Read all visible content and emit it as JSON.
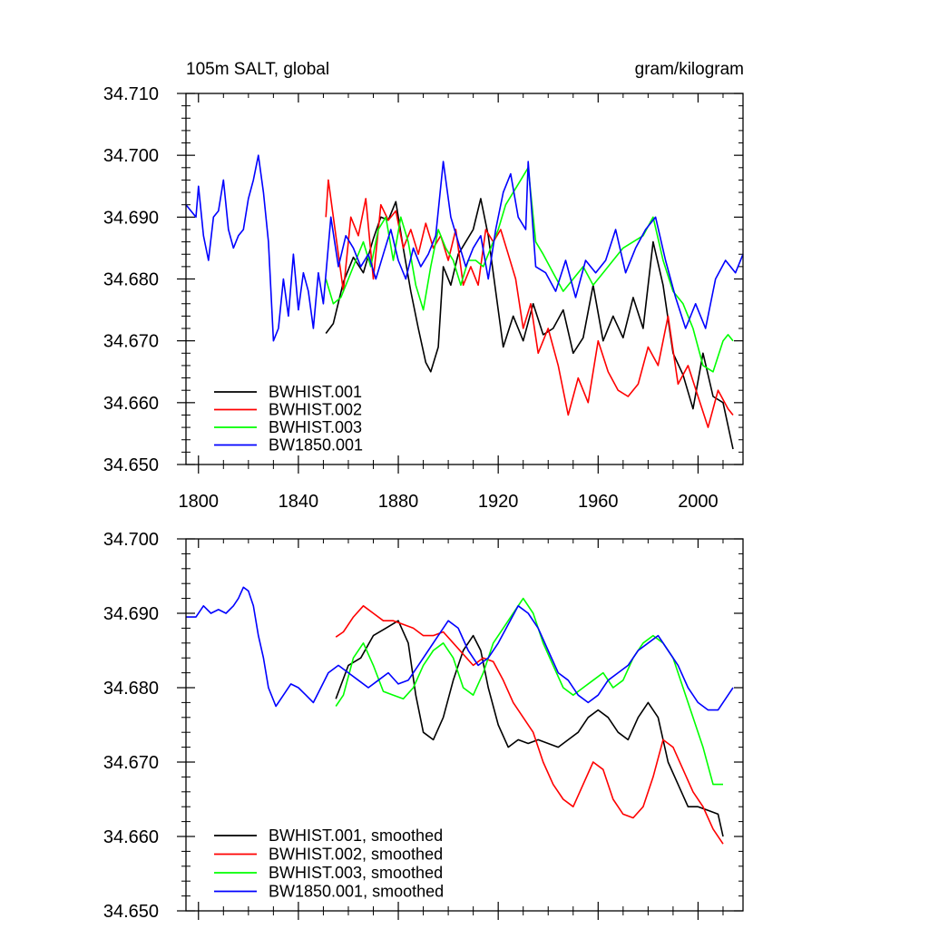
{
  "chart_data": [
    {
      "type": "line",
      "title": "105m SALT, global",
      "units": "gram/kilogram",
      "xlim": [
        1795,
        2018
      ],
      "ylim": [
        34.65,
        34.71
      ],
      "xticks": [
        1800,
        1840,
        1880,
        1920,
        1960,
        2000
      ],
      "yticks": [
        34.65,
        34.66,
        34.67,
        34.68,
        34.69,
        34.7,
        34.71
      ],
      "xtick_labels": [
        "1800",
        "1840",
        "1880",
        "1920",
        "1960",
        "2000"
      ],
      "ytick_labels": [
        "34.650",
        "34.660",
        "34.670",
        "34.680",
        "34.690",
        "34.700",
        "34.710"
      ],
      "legend_position": "bottom-left",
      "series": [
        {
          "name": "BWHIST.001",
          "color": "#000000",
          "x": [
            1851,
            1854,
            1858,
            1862,
            1866,
            1870,
            1873,
            1876,
            1879,
            1882,
            1885,
            1888,
            1891,
            1893,
            1896,
            1898,
            1901,
            1904,
            1907,
            1910,
            1913,
            1916,
            1919,
            1922,
            1926,
            1930,
            1934,
            1938,
            1942,
            1946,
            1950,
            1954,
            1958,
            1962,
            1966,
            1970,
            1974,
            1978,
            1982,
            1986,
            1990,
            1994,
            1998,
            2002,
            2006,
            2010,
            2014
          ],
          "y": [
            34.6712,
            34.6728,
            34.6795,
            34.6835,
            34.681,
            34.6865,
            34.69,
            34.6895,
            34.6925,
            34.685,
            34.678,
            34.672,
            34.6665,
            34.665,
            34.669,
            34.682,
            34.679,
            34.684,
            34.686,
            34.688,
            34.693,
            34.687,
            34.678,
            34.669,
            34.674,
            34.67,
            34.676,
            34.671,
            34.672,
            34.675,
            34.668,
            34.6705,
            34.679,
            34.67,
            34.674,
            34.6705,
            34.677,
            34.672,
            34.686,
            34.679,
            34.668,
            34.6645,
            34.659,
            34.668,
            34.661,
            34.66,
            34.6525
          ]
        },
        {
          "name": "BWHIST.002",
          "color": "#ff0000",
          "x": [
            1851,
            1852,
            1855,
            1858,
            1861,
            1864,
            1867,
            1870,
            1873,
            1876,
            1879,
            1882,
            1885,
            1888,
            1891,
            1894,
            1897,
            1900,
            1903,
            1906,
            1909,
            1912,
            1915,
            1918,
            1921,
            1924,
            1927,
            1930,
            1933,
            1936,
            1940,
            1944,
            1948,
            1952,
            1956,
            1960,
            1964,
            1968,
            1972,
            1976,
            1980,
            1984,
            1988,
            1992,
            1996,
            2000,
            2004,
            2008,
            2012,
            2014
          ],
          "y": [
            34.69,
            34.696,
            34.687,
            34.678,
            34.69,
            34.687,
            34.693,
            34.68,
            34.692,
            34.6895,
            34.691,
            34.685,
            34.688,
            34.684,
            34.689,
            34.685,
            34.687,
            34.683,
            34.688,
            34.679,
            34.682,
            34.679,
            34.688,
            34.686,
            34.688,
            34.684,
            34.68,
            34.672,
            34.676,
            34.668,
            34.672,
            34.666,
            34.658,
            34.664,
            34.66,
            34.67,
            34.665,
            34.662,
            34.661,
            34.663,
            34.669,
            34.666,
            34.674,
            34.663,
            34.666,
            34.661,
            34.656,
            34.662,
            34.659,
            34.658
          ]
        },
        {
          "name": "BWHIST.003",
          "color": "#00ff00",
          "x": [
            1851,
            1854,
            1857,
            1860,
            1863,
            1866,
            1869,
            1872,
            1875,
            1878,
            1881,
            1884,
            1887,
            1890,
            1893,
            1896,
            1899,
            1902,
            1905,
            1908,
            1911,
            1914,
            1917,
            1920,
            1923,
            1926,
            1929,
            1932,
            1935,
            1938,
            1942,
            1946,
            1950,
            1954,
            1958,
            1962,
            1966,
            1970,
            1974,
            1978,
            1982,
            1986,
            1990,
            1994,
            1998,
            2002,
            2006,
            2010,
            2012,
            2014
          ],
          "y": [
            34.68,
            34.676,
            34.677,
            34.68,
            34.683,
            34.686,
            34.682,
            34.688,
            34.69,
            34.683,
            34.69,
            34.686,
            34.679,
            34.675,
            34.682,
            34.688,
            34.685,
            34.683,
            34.679,
            34.683,
            34.683,
            34.682,
            34.685,
            34.688,
            34.692,
            34.694,
            34.696,
            34.698,
            34.686,
            34.684,
            34.681,
            34.678,
            34.68,
            34.682,
            34.679,
            34.681,
            34.683,
            34.685,
            34.686,
            34.687,
            34.69,
            34.683,
            34.678,
            34.676,
            34.672,
            34.666,
            34.665,
            34.67,
            34.671,
            34.67
          ]
        },
        {
          "name": "BW1850.001",
          "color": "#0000ff",
          "x": [
            1795,
            1797,
            1799,
            1800,
            1802,
            1804,
            1806,
            1808,
            1810,
            1812,
            1814,
            1816,
            1818,
            1820,
            1822,
            1824,
            1826,
            1828,
            1830,
            1832,
            1834,
            1836,
            1838,
            1840,
            1842,
            1844,
            1846,
            1848,
            1850,
            1853,
            1856,
            1859,
            1862,
            1865,
            1868,
            1871,
            1874,
            1877,
            1880,
            1883,
            1886,
            1889,
            1892,
            1895,
            1898,
            1901,
            1904,
            1907,
            1910,
            1913,
            1916,
            1919,
            1922,
            1925,
            1928,
            1931,
            1932,
            1935,
            1939,
            1943,
            1947,
            1951,
            1955,
            1959,
            1963,
            1967,
            1971,
            1975,
            1979,
            1983,
            1987,
            1991,
            1995,
            1999,
            2003,
            2007,
            2011,
            2015,
            2018
          ],
          "y": [
            34.692,
            34.691,
            34.69,
            34.695,
            34.687,
            34.683,
            34.69,
            34.691,
            34.696,
            34.688,
            34.685,
            34.687,
            34.688,
            34.693,
            34.696,
            34.7,
            34.694,
            34.686,
            34.67,
            34.672,
            34.68,
            34.674,
            34.684,
            34.675,
            34.681,
            34.678,
            34.672,
            34.681,
            34.676,
            34.69,
            34.682,
            34.687,
            34.685,
            34.682,
            34.684,
            34.68,
            34.684,
            34.688,
            34.683,
            34.68,
            34.685,
            34.682,
            34.684,
            34.687,
            34.699,
            34.69,
            34.686,
            34.682,
            34.685,
            34.687,
            34.68,
            34.688,
            34.694,
            34.697,
            34.69,
            34.688,
            34.699,
            34.682,
            34.681,
            34.678,
            34.683,
            34.677,
            34.683,
            34.681,
            34.683,
            34.688,
            34.681,
            34.685,
            34.688,
            34.69,
            34.683,
            34.677,
            34.672,
            34.676,
            34.672,
            34.68,
            34.683,
            34.681,
            34.684
          ]
        }
      ]
    },
    {
      "type": "line",
      "xlim": [
        1795,
        2018
      ],
      "ylim": [
        34.65,
        34.7
      ],
      "xticks": [
        1800,
        1840,
        1880,
        1920,
        1960,
        2000
      ],
      "yticks": [
        34.65,
        34.66,
        34.67,
        34.68,
        34.69,
        34.7
      ],
      "ytick_labels": [
        "34.650",
        "34.660",
        "34.670",
        "34.680",
        "34.690",
        "34.700"
      ],
      "legend_position": "bottom-left",
      "series": [
        {
          "name": "BWHIST.001, smoothed",
          "color": "#000000",
          "x": [
            1855,
            1860,
            1865,
            1870,
            1875,
            1880,
            1884,
            1887,
            1890,
            1894,
            1898,
            1902,
            1906,
            1910,
            1913,
            1916,
            1920,
            1924,
            1928,
            1932,
            1936,
            1940,
            1944,
            1948,
            1952,
            1956,
            1960,
            1964,
            1968,
            1972,
            1976,
            1980,
            1984,
            1988,
            1992,
            1996,
            2000,
            2004,
            2008,
            2010
          ],
          "y": [
            34.6785,
            34.683,
            34.684,
            34.687,
            34.688,
            34.689,
            34.686,
            34.679,
            34.674,
            34.673,
            34.676,
            34.681,
            34.685,
            34.687,
            34.685,
            34.68,
            34.675,
            34.672,
            34.673,
            34.6725,
            34.673,
            34.6725,
            34.672,
            34.673,
            34.674,
            34.676,
            34.677,
            34.676,
            34.674,
            34.673,
            34.676,
            34.678,
            34.676,
            34.67,
            34.667,
            34.664,
            34.664,
            34.6635,
            34.663,
            34.66
          ]
        },
        {
          "name": "BWHIST.002, smoothed",
          "color": "#ff0000",
          "x": [
            1855,
            1858,
            1862,
            1866,
            1870,
            1874,
            1878,
            1882,
            1886,
            1890,
            1894,
            1898,
            1902,
            1906,
            1910,
            1914,
            1918,
            1922,
            1926,
            1930,
            1934,
            1938,
            1942,
            1946,
            1950,
            1954,
            1958,
            1962,
            1966,
            1970,
            1974,
            1978,
            1982,
            1986,
            1990,
            1994,
            1998,
            2002,
            2006,
            2010
          ],
          "y": [
            34.6868,
            34.6875,
            34.6895,
            34.691,
            34.69,
            34.689,
            34.689,
            34.6885,
            34.688,
            34.687,
            34.687,
            34.6875,
            34.686,
            34.6845,
            34.683,
            34.684,
            34.6835,
            34.681,
            34.678,
            34.676,
            34.674,
            34.67,
            34.667,
            34.665,
            34.664,
            34.667,
            34.67,
            34.669,
            34.665,
            34.663,
            34.6625,
            34.664,
            34.668,
            34.673,
            34.672,
            34.669,
            34.666,
            34.664,
            34.661,
            34.659
          ]
        },
        {
          "name": "BWHIST.003, smoothed",
          "color": "#00ff00",
          "x": [
            1855,
            1858,
            1862,
            1866,
            1870,
            1874,
            1878,
            1882,
            1886,
            1890,
            1894,
            1898,
            1902,
            1906,
            1910,
            1914,
            1918,
            1922,
            1926,
            1930,
            1934,
            1938,
            1942,
            1946,
            1950,
            1954,
            1958,
            1962,
            1966,
            1970,
            1974,
            1978,
            1982,
            1986,
            1990,
            1994,
            1998,
            2002,
            2006,
            2010
          ],
          "y": [
            34.6775,
            34.679,
            34.684,
            34.686,
            34.683,
            34.6795,
            34.679,
            34.6785,
            34.68,
            34.683,
            34.685,
            34.686,
            34.684,
            34.68,
            34.679,
            34.682,
            34.686,
            34.688,
            34.69,
            34.692,
            34.69,
            34.686,
            34.683,
            34.68,
            34.679,
            34.68,
            34.681,
            34.682,
            34.68,
            34.681,
            34.684,
            34.686,
            34.687,
            34.686,
            34.684,
            34.68,
            34.676,
            34.672,
            34.667,
            34.667
          ]
        },
        {
          "name": "BW1850.001, smoothed",
          "color": "#0000ff",
          "x": [
            1795,
            1799,
            1802,
            1805,
            1808,
            1811,
            1814,
            1816,
            1818,
            1820,
            1822,
            1824,
            1826,
            1828,
            1831,
            1834,
            1837,
            1840,
            1843,
            1846,
            1849,
            1852,
            1856,
            1860,
            1864,
            1868,
            1872,
            1876,
            1880,
            1884,
            1888,
            1892,
            1896,
            1900,
            1904,
            1908,
            1912,
            1916,
            1920,
            1924,
            1928,
            1932,
            1936,
            1940,
            1944,
            1948,
            1952,
            1956,
            1960,
            1964,
            1968,
            1972,
            1976,
            1980,
            1984,
            1988,
            1992,
            1996,
            2000,
            2004,
            2008,
            2012,
            2014
          ],
          "y": [
            34.6895,
            34.6895,
            34.691,
            34.69,
            34.6905,
            34.69,
            34.691,
            34.692,
            34.6935,
            34.693,
            34.691,
            34.687,
            34.684,
            34.68,
            34.6775,
            34.679,
            34.6805,
            34.68,
            34.679,
            34.678,
            34.68,
            34.682,
            34.683,
            34.682,
            34.681,
            34.68,
            34.681,
            34.682,
            34.6805,
            34.681,
            34.683,
            34.685,
            34.687,
            34.689,
            34.688,
            34.685,
            34.683,
            34.684,
            34.686,
            34.6885,
            34.691,
            34.69,
            34.688,
            34.685,
            34.682,
            34.681,
            34.679,
            34.678,
            34.679,
            34.681,
            34.682,
            34.683,
            34.685,
            34.686,
            34.687,
            34.685,
            34.683,
            34.68,
            34.678,
            34.677,
            34.677,
            34.679,
            34.68
          ]
        }
      ]
    }
  ]
}
